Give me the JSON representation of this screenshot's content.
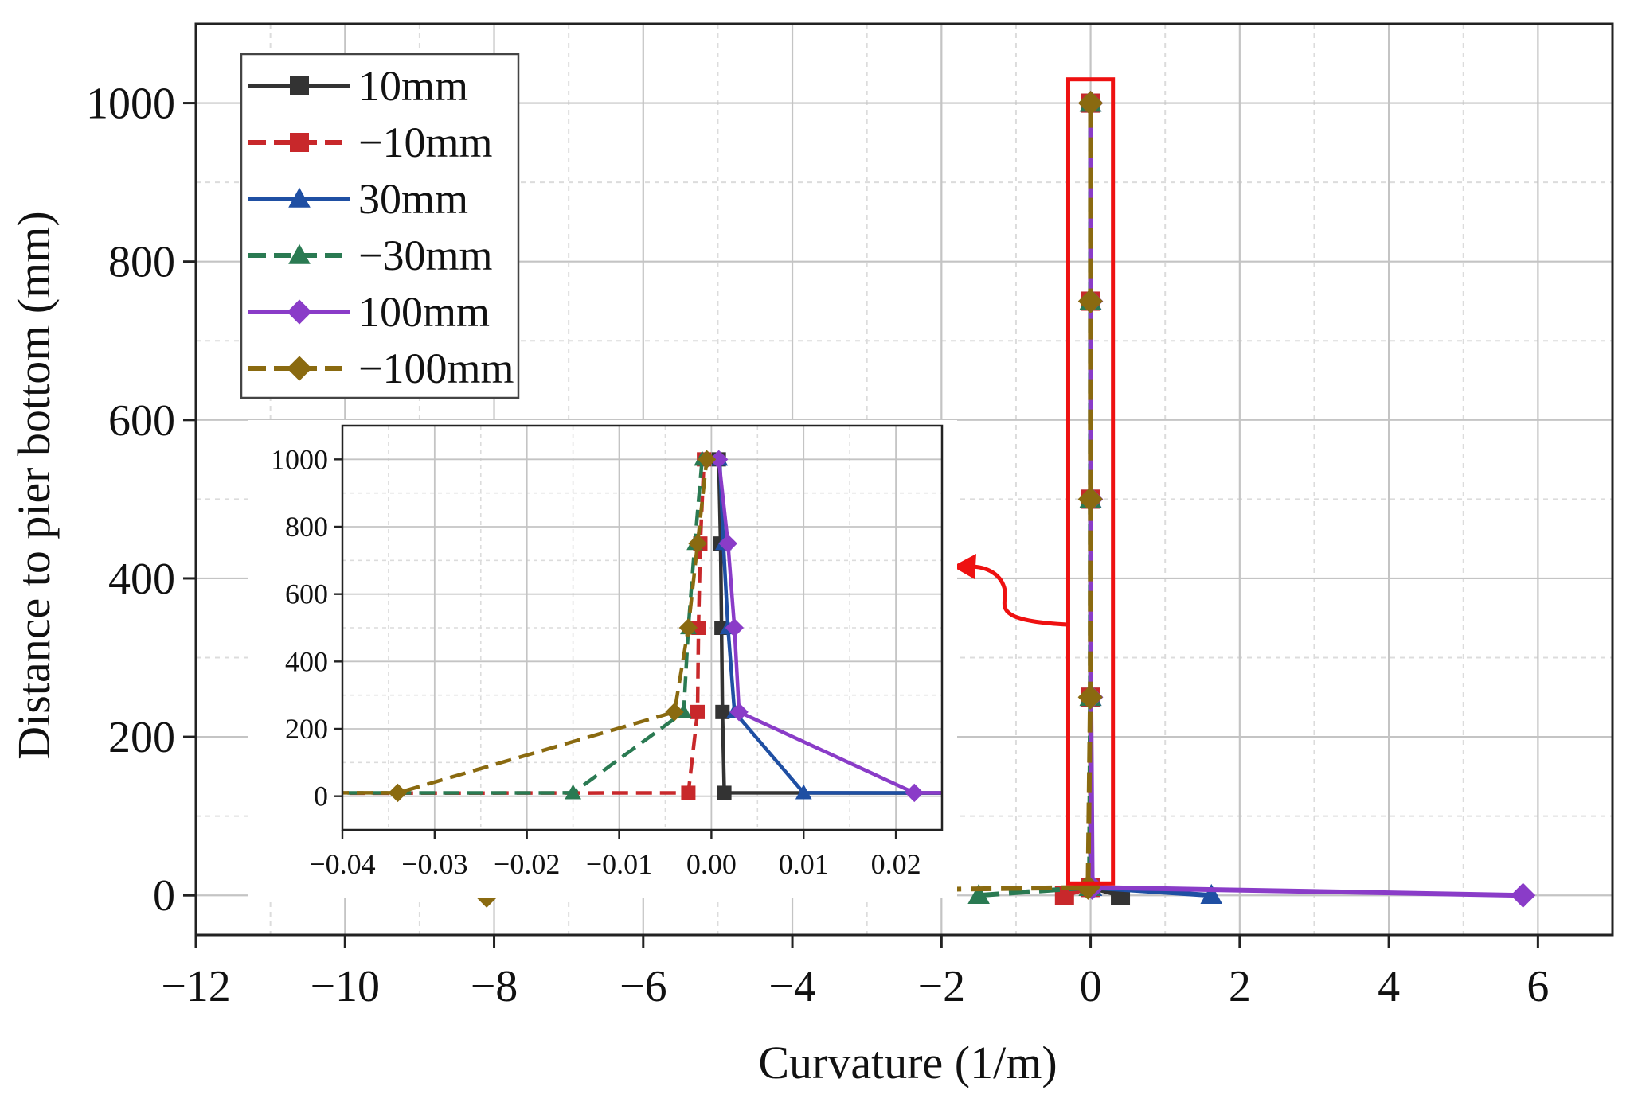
{
  "chart_data": {
    "type": "line",
    "xlabel": "Curvature (1/m)",
    "ylabel": "Distance to pier bottom (mm)",
    "xlim": [
      -12,
      7
    ],
    "ylim": [
      -50,
      1100
    ],
    "xticks": [
      -12,
      -10,
      -8,
      -6,
      -4,
      -2,
      0,
      2,
      4,
      6
    ],
    "xtick_labels": [
      "−12",
      "−10",
      "−8",
      "−6",
      "−4",
      "−2",
      "0",
      "2",
      "4",
      "6"
    ],
    "yticks": [
      0,
      200,
      400,
      600,
      800,
      1000
    ],
    "ytick_labels": [
      "0",
      "200",
      "400",
      "600",
      "800",
      "1000"
    ],
    "grid": true,
    "legend_position": "top-left",
    "series": [
      {
        "name": "10mm",
        "color": "#333333",
        "dash": "solid",
        "marker": "square",
        "points": [
          [
            0.4,
            0
          ],
          [
            0.0014,
            10
          ],
          [
            0.0012,
            250
          ],
          [
            0.0011,
            500
          ],
          [
            0.001,
            750
          ],
          [
            0.0008,
            1000
          ]
        ]
      },
      {
        "name": "−10mm",
        "color": "#c8282b",
        "dash": "dashed",
        "marker": "square",
        "points": [
          [
            -0.35,
            0
          ],
          [
            -0.0025,
            10
          ],
          [
            -0.0015,
            250
          ],
          [
            -0.0014,
            500
          ],
          [
            -0.0012,
            750
          ],
          [
            -0.0008,
            1000
          ]
        ]
      },
      {
        "name": "30mm",
        "color": "#1f4fa3",
        "dash": "solid",
        "marker": "triangle",
        "points": [
          [
            1.62,
            0
          ],
          [
            0.01,
            10
          ],
          [
            0.0025,
            250
          ],
          [
            0.0018,
            500
          ],
          [
            0.0013,
            750
          ],
          [
            0.0009,
            1000
          ]
        ]
      },
      {
        "name": "−30mm",
        "color": "#2a7a52",
        "dash": "dashed",
        "marker": "triangle",
        "points": [
          [
            -1.5,
            0
          ],
          [
            -0.015,
            10
          ],
          [
            -0.003,
            250
          ],
          [
            -0.0025,
            500
          ],
          [
            -0.0018,
            750
          ],
          [
            -0.001,
            1000
          ]
        ]
      },
      {
        "name": "100mm",
        "color": "#8a3cc8",
        "dash": "solid",
        "marker": "diamond",
        "points": [
          [
            5.8,
            0
          ],
          [
            0.022,
            10
          ],
          [
            0.003,
            250
          ],
          [
            0.0025,
            500
          ],
          [
            0.0018,
            750
          ],
          [
            0.0008,
            1000
          ]
        ]
      },
      {
        "name": "−100mm",
        "color": "#8a6a10",
        "dash": "dashed",
        "marker": "diamond",
        "points": [
          [
            -8.1,
            0
          ],
          [
            -0.034,
            10
          ],
          [
            -0.004,
            250
          ],
          [
            -0.0025,
            500
          ],
          [
            -0.0015,
            750
          ],
          [
            -0.0005,
            1000
          ]
        ]
      }
    ],
    "highlight_box": {
      "x_range": [
        -0.3,
        0.3
      ],
      "y_range": [
        1030,
        15
      ],
      "color": "#ee1111"
    },
    "inset": {
      "xlim": [
        -0.04,
        0.025
      ],
      "ylim": [
        -100,
        1100
      ],
      "xticks": [
        -0.04,
        -0.03,
        -0.02,
        -0.01,
        0.0,
        0.01,
        0.02
      ],
      "xtick_labels": [
        "−0.04",
        "−0.03",
        "−0.02",
        "−0.01",
        "0.00",
        "0.01",
        "0.02"
      ],
      "yticks": [
        0,
        200,
        400,
        600,
        800,
        1000
      ],
      "ytick_labels": [
        "0",
        "200",
        "400",
        "600",
        "800",
        "1000"
      ]
    }
  }
}
